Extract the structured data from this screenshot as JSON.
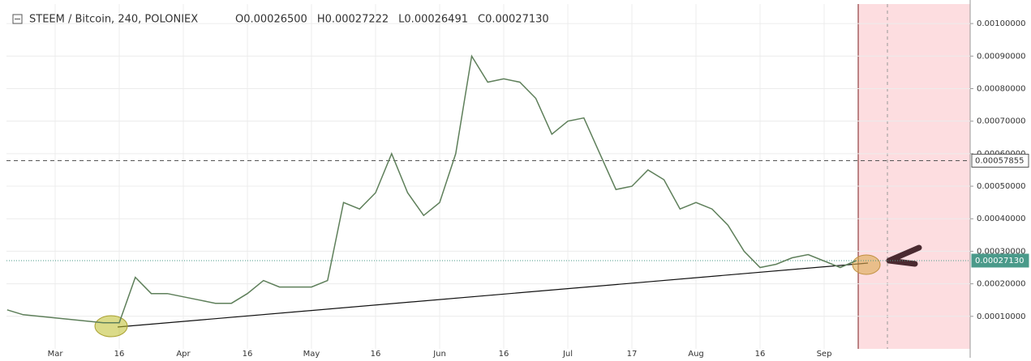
{
  "chart_data": {
    "type": "line",
    "title": "STEEM / Bitcoin, 240, POLONIEX",
    "header_values": [
      "O0.00026500",
      "H0.00027222",
      "L0.00026491",
      "C0.00027130"
    ],
    "categories": [
      null,
      null,
      null,
      "Mar",
      null,
      null,
      null,
      "16",
      null,
      null,
      null,
      "Apr",
      null,
      null,
      null,
      "16",
      null,
      null,
      null,
      "May",
      null,
      null,
      null,
      "16",
      null,
      null,
      null,
      "Jun",
      null,
      null,
      null,
      "16",
      null,
      null,
      null,
      "Jul",
      null,
      null,
      null,
      "17",
      null,
      null,
      null,
      "Aug",
      null,
      null,
      null,
      "16",
      null,
      null,
      null,
      "Sep",
      null,
      null
    ],
    "series": [
      {
        "name": "STEEM / Bitcoin",
        "color": "#5e7f5a",
        "values": [
          0.00012,
          0.000105,
          0.0001,
          9.5e-05,
          9e-05,
          8.5e-05,
          8e-05,
          8e-05,
          0.00022,
          0.00017,
          0.00017,
          0.00016,
          0.00015,
          0.00014,
          0.00014,
          0.00017,
          0.00021,
          0.00019,
          0.00019,
          0.00019,
          0.00021,
          0.00045,
          0.00043,
          0.00048,
          0.0006,
          0.00048,
          0.00041,
          0.00045,
          0.0006,
          0.0009,
          0.00082,
          0.00083,
          0.00082,
          0.00077,
          0.00066,
          0.0007,
          0.00071,
          0.0006,
          0.00049,
          0.0005,
          0.00055,
          0.00052,
          0.00043,
          0.00045,
          0.00043,
          0.00038,
          0.0003,
          0.00025,
          0.00026,
          0.00028,
          0.00029,
          0.00027,
          0.00025,
          0.0002713
        ]
      }
    ],
    "ylim": [
      0,
      0.00106
    ],
    "yticks": [
      {
        "value": 0.0001,
        "label": "0.00010000"
      },
      {
        "value": 0.0002,
        "label": "0.00020000"
      },
      {
        "value": 0.0003,
        "label": "0.00030000"
      },
      {
        "value": 0.0004,
        "label": "0.00040000"
      },
      {
        "value": 0.0005,
        "label": "0.00050000"
      },
      {
        "value": 0.0006,
        "label": "0.00060000"
      },
      {
        "value": 0.0007,
        "label": "0.00070000"
      },
      {
        "value": 0.0008,
        "label": "0.00080000"
      },
      {
        "value": 0.0009,
        "label": "0.00090000"
      },
      {
        "value": 0.001,
        "label": "0.00100000"
      }
    ],
    "price_lines": [
      {
        "value": 0.00057855,
        "label": "0.00057855",
        "color": "#555555"
      },
      {
        "value": 0.0002713,
        "label": "0.00027130",
        "color": "#4a9a8a"
      }
    ],
    "grid": true
  }
}
